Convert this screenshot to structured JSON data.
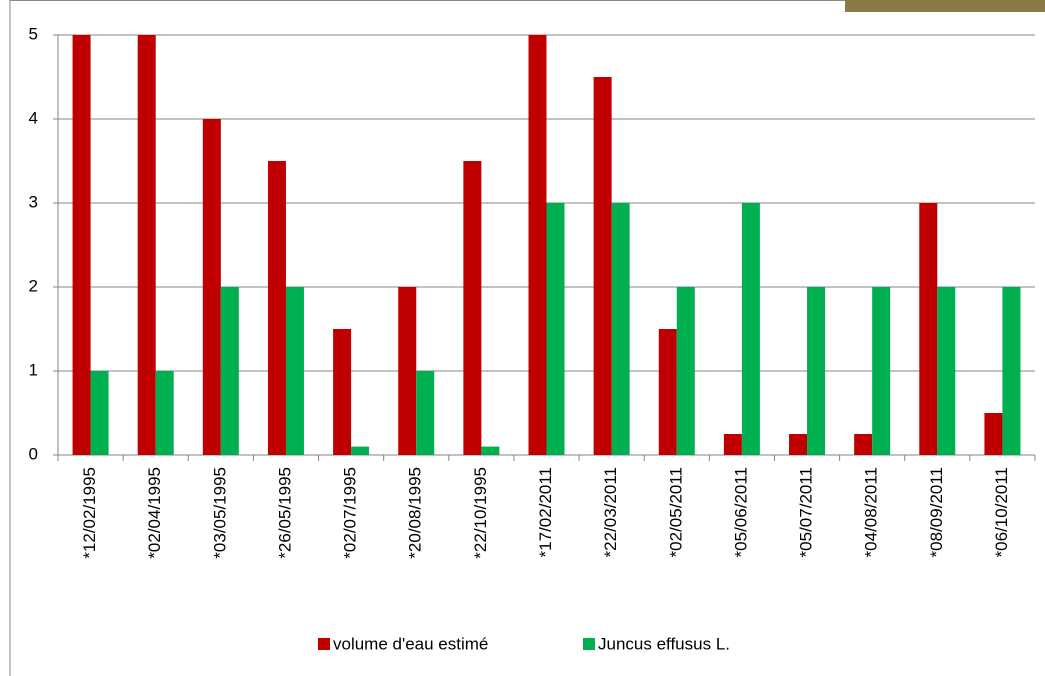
{
  "chart_data": {
    "type": "bar",
    "categories": [
      "*12/02/1995",
      "*02/04/1995",
      "*03/05/1995",
      "*26/05/1995",
      "*02/07/1995",
      "*20/08/1995",
      "*22/10/1995",
      "*17/02/2011",
      "*22/03/2011",
      "*02/05/2011",
      "*05/06/2011",
      "*05/07/2011",
      "*04/08/2011",
      "*08/09/2011",
      "*06/10/2011"
    ],
    "series": [
      {
        "name": "volume d'eau estimé",
        "color": "#c00000",
        "values": [
          5,
          5,
          4,
          3.5,
          1.5,
          2,
          3.5,
          5,
          4.5,
          1.5,
          0.25,
          0.25,
          0.25,
          3,
          0.5
        ]
      },
      {
        "name": "Juncus effusus L.",
        "color": "#00b050",
        "values": [
          1,
          1,
          2,
          2,
          0.1,
          1,
          0.1,
          3,
          3,
          2,
          3,
          2,
          2,
          2,
          2
        ]
      }
    ],
    "ylim": [
      0,
      5
    ],
    "yticks": [
      0,
      1,
      2,
      3,
      4,
      5
    ],
    "grid": true,
    "legend": "bottom"
  }
}
